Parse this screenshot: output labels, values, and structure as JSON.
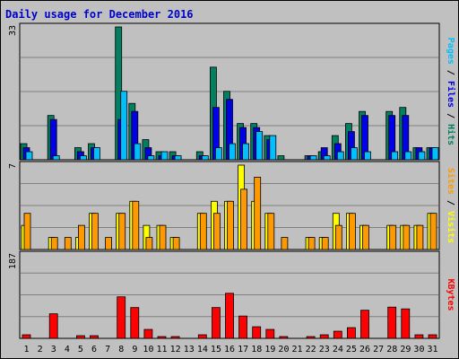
{
  "chart_data": {
    "type": "bar",
    "title": "Daily usage for December 2016",
    "days": [
      "1",
      "2",
      "3",
      "4",
      "5",
      "6",
      "7",
      "8",
      "9",
      "10",
      "11",
      "12",
      "13",
      "14",
      "15",
      "16",
      "17",
      "18",
      "19",
      "20",
      "21",
      "22",
      "23",
      "24",
      "25",
      "26",
      "27",
      "28",
      "29",
      "30",
      "31"
    ],
    "weekend_days": [
      "3",
      "4",
      "10",
      "11",
      "17",
      "18",
      "24",
      "25",
      "31"
    ],
    "panels": [
      {
        "max_label": "33",
        "ymax": 33,
        "series": [
          {
            "name": "Hits",
            "color": "#008060",
            "values": [
              4,
              0,
              11,
              0,
              3,
              4,
              0,
              33,
              14,
              5,
              2,
              2,
              0,
              2,
              23,
              17,
              9,
              9,
              6,
              1,
              0,
              1,
              2,
              6,
              9,
              12,
              0,
              12,
              13,
              3,
              3
            ]
          },
          {
            "name": "Files",
            "color": "#0000e6",
            "values": [
              3,
              0,
              10,
              0,
              2,
              3,
              0,
              10,
              12,
              3,
              1,
              1,
              0,
              1,
              13,
              15,
              8,
              8,
              5,
              0,
              0,
              1,
              3,
              4,
              7,
              11,
              0,
              11,
              11,
              3,
              3
            ]
          },
          {
            "name": "Pages",
            "color": "#00bfff",
            "values": [
              2,
              0,
              1,
              0,
              1,
              3,
              0,
              17,
              4,
              1,
              2,
              1,
              0,
              1,
              3,
              4,
              4,
              7,
              6,
              0,
              0,
              1,
              1,
              2,
              3,
              2,
              0,
              2,
              2,
              2,
              3
            ]
          }
        ]
      },
      {
        "max_label": "7",
        "ymax": 7,
        "series": [
          {
            "name": "Visits",
            "color": "#ffff00",
            "values": [
              2,
              0,
              1,
              0,
              1,
              3,
              0,
              3,
              4,
              2,
              2,
              1,
              0,
              3,
              4,
              4,
              7,
              4,
              3,
              0,
              0,
              1,
              1,
              3,
              3,
              2,
              0,
              2,
              2,
              2,
              3
            ]
          },
          {
            "name": "Sites",
            "color": "#ff9900",
            "values": [
              3,
              0,
              1,
              1,
              2,
              3,
              1,
              3,
              4,
              1,
              2,
              1,
              0,
              3,
              3,
              4,
              5,
              6,
              3,
              1,
              0,
              1,
              1,
              2,
              3,
              2,
              0,
              2,
              2,
              2,
              3
            ]
          }
        ]
      },
      {
        "max_label": "187",
        "ymax": 187,
        "series": [
          {
            "name": "KBytes",
            "color": "#ff0000",
            "values": [
              8,
              0,
              55,
              0,
              6,
              6,
              0,
              93,
              69,
              20,
              4,
              4,
              0,
              8,
              69,
              101,
              50,
              26,
              20,
              4,
              0,
              4,
              8,
              16,
              24,
              63,
              0,
              70,
              66,
              8,
              8
            ]
          }
        ]
      }
    ]
  }
}
